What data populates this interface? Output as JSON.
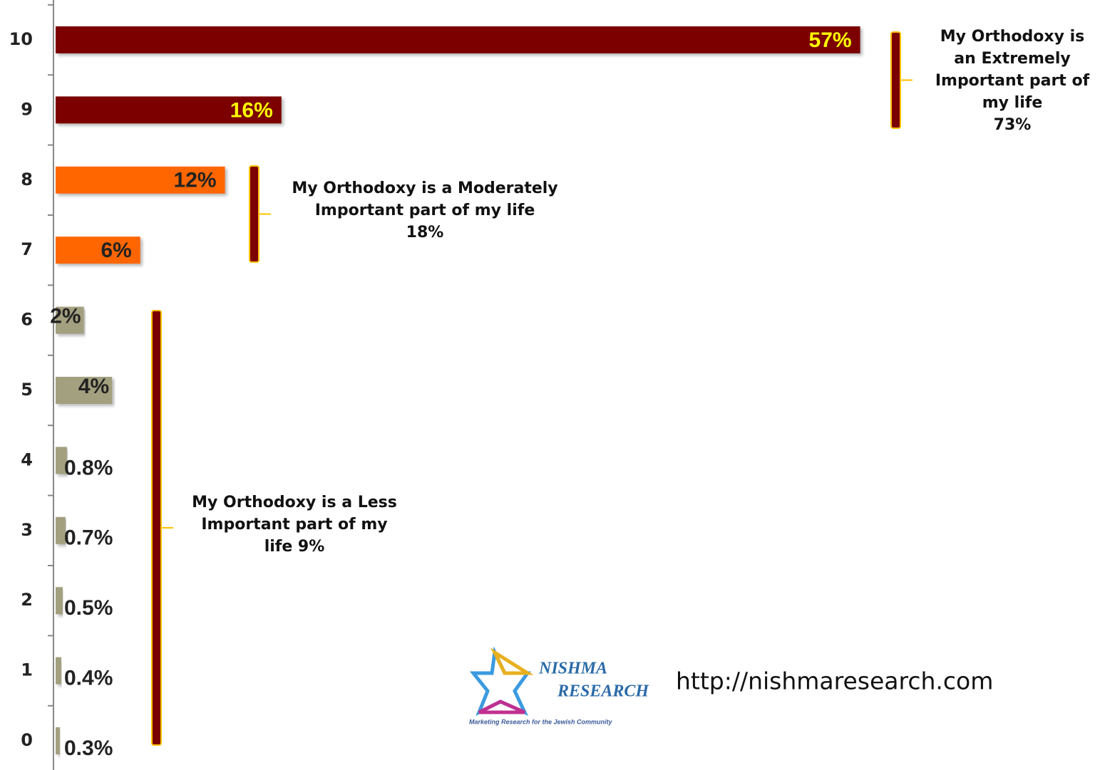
{
  "chart_data": {
    "type": "bar",
    "orientation": "horizontal",
    "categories": [
      "10",
      "9",
      "8",
      "7",
      "6",
      "5",
      "4",
      "3",
      "2",
      "1",
      "0"
    ],
    "values": [
      57,
      16,
      12,
      6,
      2,
      4,
      0.8,
      0.7,
      0.5,
      0.4,
      0.3
    ],
    "value_labels": [
      "57%",
      "16%",
      "12%",
      "6%",
      "2%",
      "4%",
      "0.8%",
      "0.7%",
      "0.5%",
      "0.4%",
      "0.3%"
    ],
    "colors": [
      "#7b0000",
      "#7b0000",
      "#ff6600",
      "#ff6600",
      "#a3a07f",
      "#a3a07f",
      "#a3a07f",
      "#a3a07f",
      "#a3a07f",
      "#a3a07f",
      "#a3a07f"
    ],
    "annotations": [
      {
        "lines": [
          "My Orthodoxy is",
          "an Extremely",
          "Important part of",
          "my life",
          "73%"
        ]
      },
      {
        "lines": [
          "My Orthodoxy is a Moderately",
          "Important part of my life",
          "18%"
        ]
      },
      {
        "lines": [
          "My Orthodoxy is a Less",
          "Important part of my",
          "life 9%"
        ]
      }
    ]
  },
  "logo": {
    "name_top": "NISHMA",
    "name_bottom": "RESEARCH",
    "tagline": "Marketing Research for the Jewish Community",
    "url": "http://nishmaresearch.com"
  }
}
